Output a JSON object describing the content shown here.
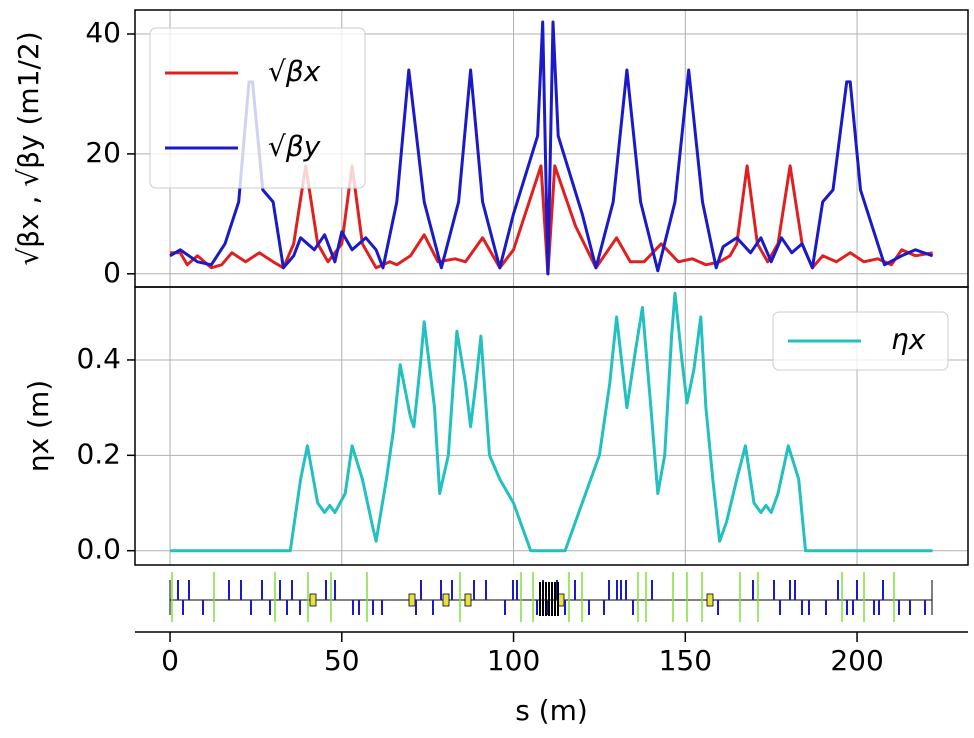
{
  "chart_data": [
    {
      "type": "line",
      "ylabel": "√βx , √βy (m1/2)",
      "legend": "upper left",
      "grid": true,
      "xlim": [
        -10.2,
        232.3
      ],
      "xticks": [
        0,
        50,
        100,
        150,
        200
      ],
      "ylim": [
        -2.2,
        44
      ],
      "yticks": [
        0,
        20,
        40
      ],
      "series": [
        {
          "name": "√βx",
          "color": "#e02020",
          "x": [
            0,
            3,
            5,
            8,
            12,
            15,
            18,
            22,
            26,
            30,
            33,
            36,
            39.5,
            43,
            46,
            50,
            53,
            56,
            60,
            64,
            66,
            70,
            74,
            78,
            83,
            86,
            91,
            96,
            100,
            108,
            110,
            112,
            118,
            124,
            130,
            134,
            138,
            143,
            148,
            152,
            156,
            160,
            163,
            165,
            168,
            171,
            174,
            177,
            180.5,
            184,
            187,
            190,
            194,
            198,
            202,
            206,
            210,
            213,
            217,
            222
          ],
          "values": [
            3.5,
            3.5,
            1.5,
            3,
            1,
            1.5,
            3.5,
            2,
            3.5,
            2,
            1,
            5,
            18,
            5,
            2,
            5,
            18,
            5,
            1,
            2,
            1.5,
            3,
            6.5,
            2,
            2.5,
            2,
            6,
            1,
            4,
            18,
            0,
            18,
            8,
            1,
            6,
            2,
            2,
            5,
            2,
            2.5,
            1.5,
            2,
            3,
            5,
            18,
            5,
            2,
            5,
            18,
            5,
            1,
            3,
            2,
            3.5,
            2,
            2.5,
            1.5,
            4,
            3,
            3.5
          ]
        },
        {
          "name": "√βy",
          "color": "#1a1ac8",
          "x": [
            0,
            3,
            8,
            12,
            16,
            20,
            23,
            24,
            27,
            30,
            33,
            36,
            38,
            42,
            45,
            48,
            50,
            53,
            57,
            60,
            62,
            66,
            69.5,
            74,
            79,
            84,
            87.5,
            91,
            96,
            100,
            107,
            108.5,
            110,
            111.5,
            113,
            120,
            124,
            129,
            133,
            137,
            142,
            147,
            151,
            155,
            159,
            161,
            165,
            169,
            172,
            175,
            178,
            181,
            184,
            187,
            190,
            193,
            197,
            198,
            201,
            208,
            213,
            217,
            222
          ],
          "values": [
            3,
            4,
            2,
            1.5,
            5,
            12,
            32,
            32,
            14,
            12,
            1,
            3,
            6,
            4,
            6.5,
            2,
            7,
            4,
            6,
            4,
            1,
            12,
            34,
            12,
            1,
            12,
            34,
            12,
            1,
            10,
            23,
            42,
            0,
            42,
            23,
            10,
            1,
            12,
            34,
            12,
            0.5,
            12,
            34,
            12,
            1,
            4.5,
            6,
            3.5,
            6,
            2,
            6,
            3.5,
            5,
            1,
            12,
            14,
            32,
            32,
            14,
            1.5,
            3,
            4,
            3
          ]
        }
      ]
    },
    {
      "type": "line",
      "xlabel": "s (m)",
      "ylabel": "ηx (m)",
      "legend": "upper right",
      "grid": true,
      "xlim": [
        -10.2,
        232.3
      ],
      "xticks": [
        0,
        50,
        100,
        150,
        200
      ],
      "ylim": [
        -0.03,
        0.553
      ],
      "yticks": [
        {
          "value": 0,
          "label": "0.0"
        },
        0.2,
        0.4
      ],
      "series": [
        {
          "name": "ηx",
          "color": "#22c0c0",
          "x": [
            0,
            35,
            38,
            40,
            43,
            45,
            46.5,
            48,
            51,
            53,
            56,
            59,
            60,
            63,
            65,
            67,
            70,
            71,
            73,
            74,
            77,
            78.5,
            81,
            83.5,
            86,
            87.5,
            89,
            90.5,
            93,
            96,
            100,
            105,
            115,
            120,
            125,
            128,
            130,
            133,
            135.5,
            137.5,
            140,
            142,
            144,
            146,
            147,
            149,
            150.5,
            152.5,
            154.5,
            156,
            158,
            160,
            162,
            165,
            167.5,
            170,
            172,
            173.5,
            175,
            177,
            180,
            183,
            185,
            222
          ],
          "values": [
            0,
            0,
            0.15,
            0.22,
            0.1,
            0.08,
            0.095,
            0.08,
            0.12,
            0.22,
            0.15,
            0.05,
            0.02,
            0.15,
            0.25,
            0.39,
            0.28,
            0.26,
            0.4,
            0.48,
            0.3,
            0.12,
            0.2,
            0.46,
            0.35,
            0.26,
            0.35,
            0.45,
            0.2,
            0.15,
            0.1,
            0,
            0,
            0.1,
            0.2,
            0.35,
            0.49,
            0.3,
            0.42,
            0.51,
            0.3,
            0.12,
            0.2,
            0.45,
            0.54,
            0.4,
            0.31,
            0.38,
            0.49,
            0.3,
            0.15,
            0.02,
            0.06,
            0.15,
            0.22,
            0.1,
            0.08,
            0.095,
            0.08,
            0.12,
            0.22,
            0.15,
            0,
            0
          ]
        }
      ]
    }
  ]
}
